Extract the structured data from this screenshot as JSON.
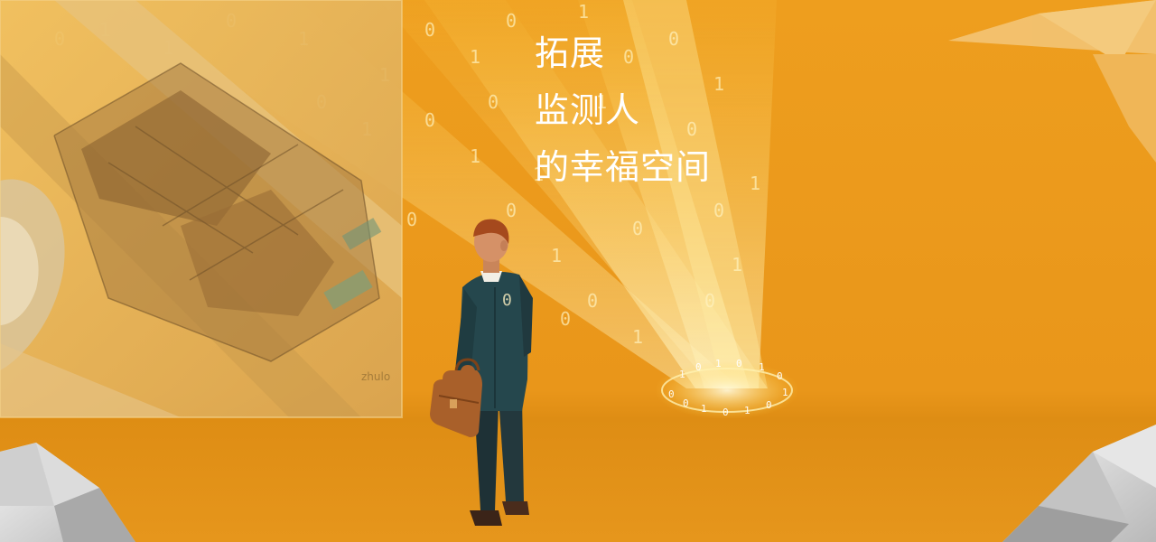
{
  "headline": {
    "line1": "拓展",
    "line2": "监测人",
    "line3": "的幸福空间"
  },
  "decor": {
    "binary_digits": [
      "0",
      "1"
    ],
    "photo_watermark": "zhulo"
  },
  "colors": {
    "background": "#ee9e1e",
    "floor": "#de8d14",
    "headline_text": "#ffffff",
    "suit": "#25474d",
    "briefcase": "#a9602a",
    "hair": "#a5491d"
  },
  "icons": {
    "briefcase": "briefcase-icon",
    "light_portal": "light-portal-icon"
  }
}
